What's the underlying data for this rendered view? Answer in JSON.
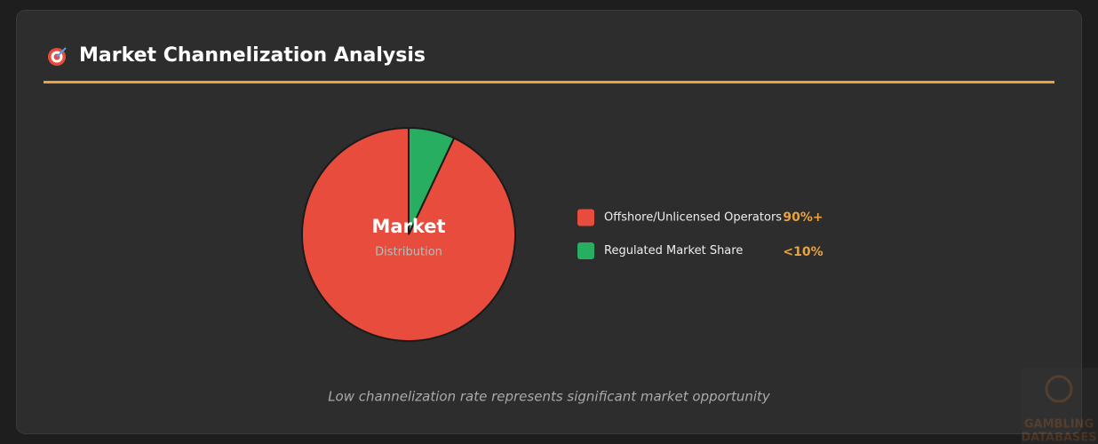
{
  "header": {
    "title": "Market Channelization Analysis"
  },
  "chart_data": {
    "type": "pie",
    "center_title": "Market",
    "center_subtitle": "Distribution",
    "categories": [
      "Offshore/Unlicensed Operators",
      "Regulated Market Share"
    ],
    "values": [
      93,
      7
    ],
    "colors": [
      "#e74c3c",
      "#27ae60"
    ],
    "legend_values": [
      "90%+",
      "<10%"
    ]
  },
  "footnote": "Low channelization rate represents significant market opportunity",
  "watermark": [
    "GAMBLING",
    "DATABASES"
  ]
}
